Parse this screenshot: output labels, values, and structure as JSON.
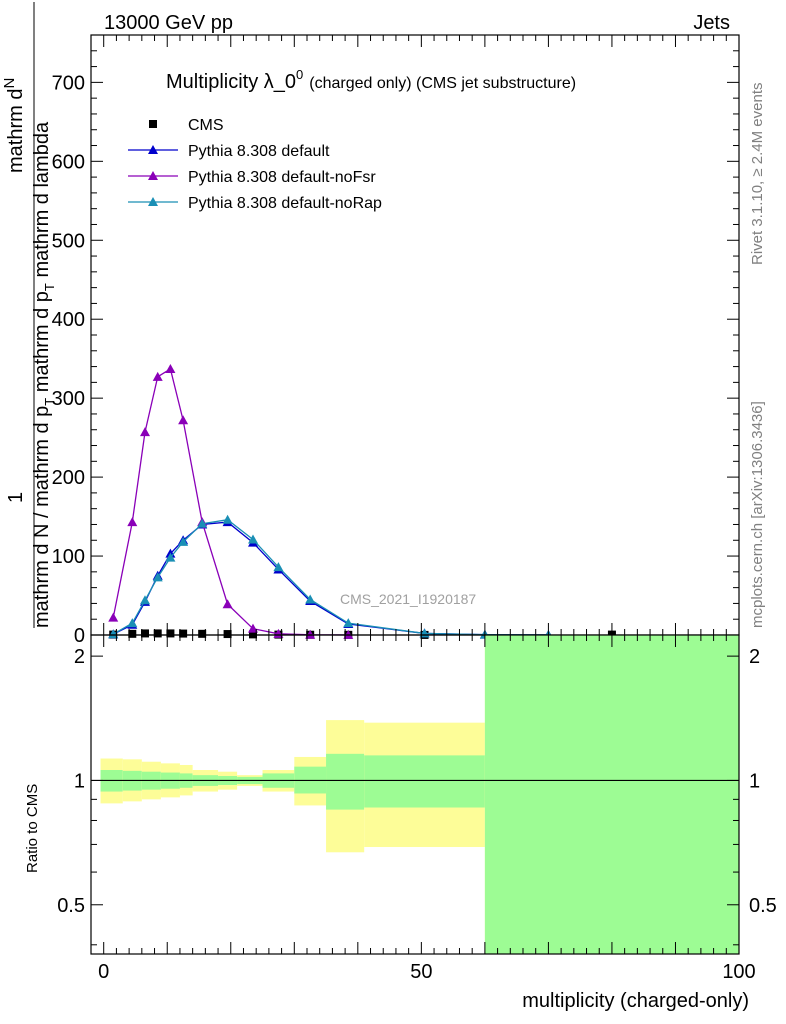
{
  "header": {
    "left": "13000 GeV pp",
    "right": "Jets"
  },
  "side_labels": {
    "rivet": "Rivet 3.1.10, ≥ 2.4M events",
    "mcplots": "mcplots.cern.ch [arXiv:1306.3436]"
  },
  "chart_data": [
    {
      "type": "line",
      "title_main": "Multiplicity λ_0",
      "title_sup": "0",
      "title_suffix": "(charged only) (CMS jet substructure)",
      "ylabel_parts": [
        "mathrm d N / mathrm d p",
        "T",
        " mathrm d p",
        "T",
        " mathrm d lambda"
      ],
      "ylabel_numerator": "1",
      "ylabel_fraction_top": "mathrm d",
      "ylabel_fraction_top2": "N",
      "watermark": "CMS_2021_I1920187",
      "xlim": [
        -2,
        100
      ],
      "ylim": [
        0,
        760
      ],
      "yticks": [
        0,
        100,
        200,
        300,
        400,
        500,
        600,
        700
      ],
      "legend_position": "top-left",
      "series": [
        {
          "name": "CMS",
          "marker": "square",
          "color": "#000000",
          "x": [
            1.5,
            4.5,
            6.5,
            8.5,
            10.5,
            12.5,
            15.5,
            19.5,
            23.5,
            27.5,
            32.5,
            38.5,
            50.5,
            80
          ],
          "y": [
            0.5,
            1.5,
            2,
            2,
            2,
            1.8,
            1.5,
            1.2,
            0.8,
            0.5,
            0.3,
            0.2,
            0.1,
            0.5
          ]
        },
        {
          "name": "Pythia 8.308 default",
          "marker": "triangle",
          "color": "#0000cc",
          "x": [
            1.5,
            4.5,
            6.5,
            8.5,
            10.5,
            12.5,
            15.5,
            19.5,
            23.5,
            27.5,
            32.5,
            38.5,
            50.5,
            60,
            70
          ],
          "y": [
            1,
            13,
            42,
            75,
            103,
            120,
            140,
            143,
            117,
            83,
            43,
            14,
            2,
            0.5,
            0.1
          ]
        },
        {
          "name": "Pythia 8.308 default-noFsr",
          "marker": "triangle",
          "color": "#8a00b8",
          "x": [
            1.5,
            4.5,
            6.5,
            8.5,
            10.5,
            12.5,
            15.5,
            19.5,
            23.5,
            27.5,
            32.5,
            38.5
          ],
          "y": [
            22,
            143,
            257,
            327,
            337,
            272,
            143,
            39,
            8,
            1.5,
            0.3,
            0.1
          ]
        },
        {
          "name": "Pythia 8.308 default-noRap",
          "marker": "triangle",
          "color": "#1a8fb5",
          "x": [
            1.5,
            4.5,
            6.5,
            8.5,
            10.5,
            12.5,
            15.5,
            19.5,
            23.5,
            27.5,
            32.5,
            38.5,
            50.5,
            60,
            70
          ],
          "y": [
            1,
            15,
            44,
            73,
            98,
            118,
            141,
            146,
            121,
            86,
            45,
            15,
            2,
            0.5,
            0.1
          ]
        }
      ]
    },
    {
      "type": "area",
      "ylabel": "Ratio to CMS",
      "xlabel": "multiplicity (charged-only)",
      "xlim": [
        -2,
        100
      ],
      "ylim": [
        0.38,
        2.25
      ],
      "xticks": [
        0,
        50,
        100
      ],
      "yticks": [
        0.5,
        1,
        2
      ],
      "reference_line": 1,
      "band_colors": {
        "stat": "#9dfc94",
        "total": "#fdfd98"
      },
      "bands": [
        {
          "x0": -0.5,
          "x1": 3,
          "stat_lo": 0.94,
          "stat_hi": 1.06,
          "tot_lo": 0.88,
          "tot_hi": 1.13
        },
        {
          "x0": 3,
          "x1": 6,
          "stat_lo": 0.945,
          "stat_hi": 1.055,
          "tot_lo": 0.89,
          "tot_hi": 1.125
        },
        {
          "x0": 6,
          "x1": 9,
          "stat_lo": 0.95,
          "stat_hi": 1.05,
          "tot_lo": 0.9,
          "tot_hi": 1.11
        },
        {
          "x0": 9,
          "x1": 12,
          "stat_lo": 0.955,
          "stat_hi": 1.045,
          "tot_lo": 0.91,
          "tot_hi": 1.1
        },
        {
          "x0": 12,
          "x1": 14,
          "stat_lo": 0.96,
          "stat_hi": 1.04,
          "tot_lo": 0.92,
          "tot_hi": 1.09
        },
        {
          "x0": 14,
          "x1": 18,
          "stat_lo": 0.97,
          "stat_hi": 1.03,
          "tot_lo": 0.94,
          "tot_hi": 1.06
        },
        {
          "x0": 18,
          "x1": 21,
          "stat_lo": 0.975,
          "stat_hi": 1.025,
          "tot_lo": 0.95,
          "tot_hi": 1.05
        },
        {
          "x0": 21,
          "x1": 25,
          "stat_lo": 0.98,
          "stat_hi": 1.02,
          "tot_lo": 0.97,
          "tot_hi": 1.03
        },
        {
          "x0": 25,
          "x1": 30,
          "stat_lo": 0.96,
          "stat_hi": 1.04,
          "tot_lo": 0.94,
          "tot_hi": 1.06
        },
        {
          "x0": 30,
          "x1": 35,
          "stat_lo": 0.93,
          "stat_hi": 1.08,
          "tot_lo": 0.87,
          "tot_hi": 1.14
        },
        {
          "x0": 35,
          "x1": 41,
          "stat_lo": 0.85,
          "stat_hi": 1.16,
          "tot_lo": 0.67,
          "tot_hi": 1.4
        },
        {
          "x0": 41,
          "x1": 60,
          "stat_lo": 0.86,
          "stat_hi": 1.15,
          "tot_lo": 0.69,
          "tot_hi": 1.38
        },
        {
          "x0": 60,
          "x1": 100,
          "stat_lo": 0.38,
          "stat_hi": 2.25,
          "tot_lo": 0.38,
          "tot_hi": 2.25
        }
      ]
    }
  ]
}
